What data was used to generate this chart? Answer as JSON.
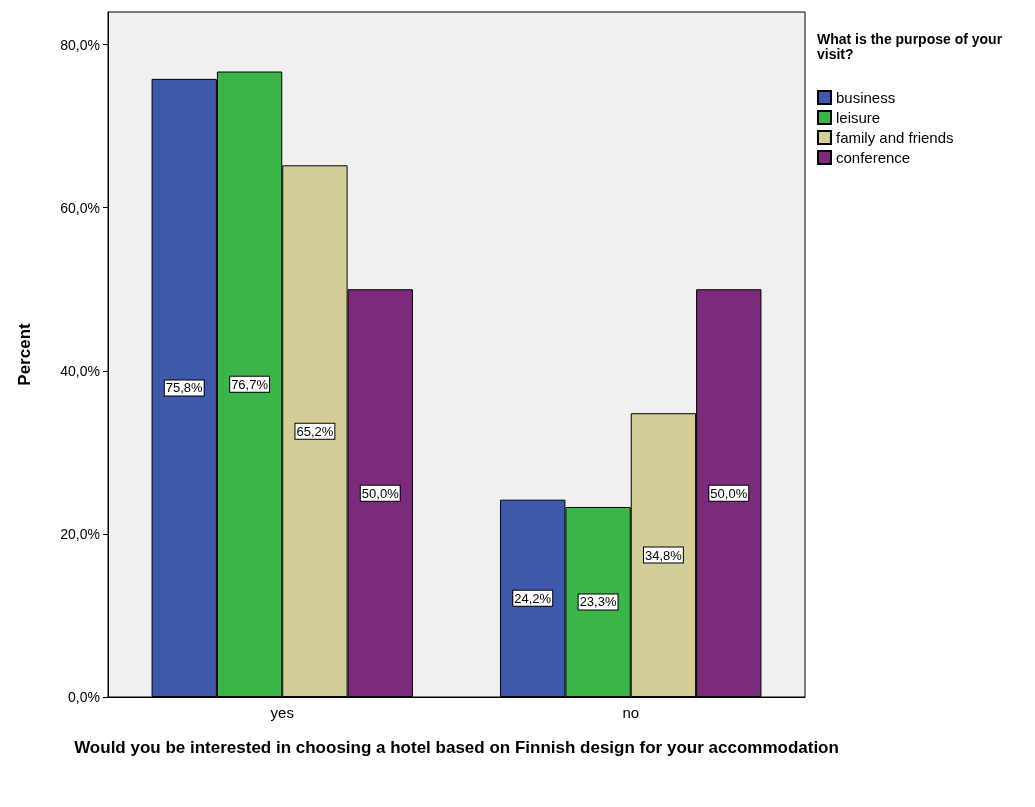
{
  "chart_data": {
    "type": "bar",
    "xlabel": "Would you be interested in choosing a hotel based on Finnish design for your accommodation",
    "ylabel": "Percent",
    "legend_title": "What is the purpose of your visit?",
    "categories": [
      "yes",
      "no"
    ],
    "series": [
      {
        "name": "business",
        "color": "#3e58ac",
        "values": [
          75.8,
          24.2
        ],
        "value_labels": [
          "75,8%",
          "24,2%"
        ]
      },
      {
        "name": "leisure",
        "color": "#3bb44a",
        "values": [
          76.7,
          23.3
        ],
        "value_labels": [
          "76,7%",
          "23,3%"
        ]
      },
      {
        "name": "family and friends",
        "color": "#d3ce97",
        "values": [
          65.2,
          34.8
        ],
        "value_labels": [
          "65,2%",
          "34,8%"
        ]
      },
      {
        "name": "conference",
        "color": "#7b2a7c",
        "values": [
          50.0,
          50.0
        ],
        "value_labels": [
          "50,0%",
          "50,0%"
        ]
      }
    ],
    "ylim": [
      0,
      84
    ],
    "yticks": [
      {
        "value": 0,
        "label": "0,0%"
      },
      {
        "value": 20,
        "label": "20,0%"
      },
      {
        "value": 40,
        "label": "40,0%"
      },
      {
        "value": 60,
        "label": "60,0%"
      },
      {
        "value": 80,
        "label": "80,0%"
      }
    ],
    "grid": false,
    "legend": "top right"
  }
}
